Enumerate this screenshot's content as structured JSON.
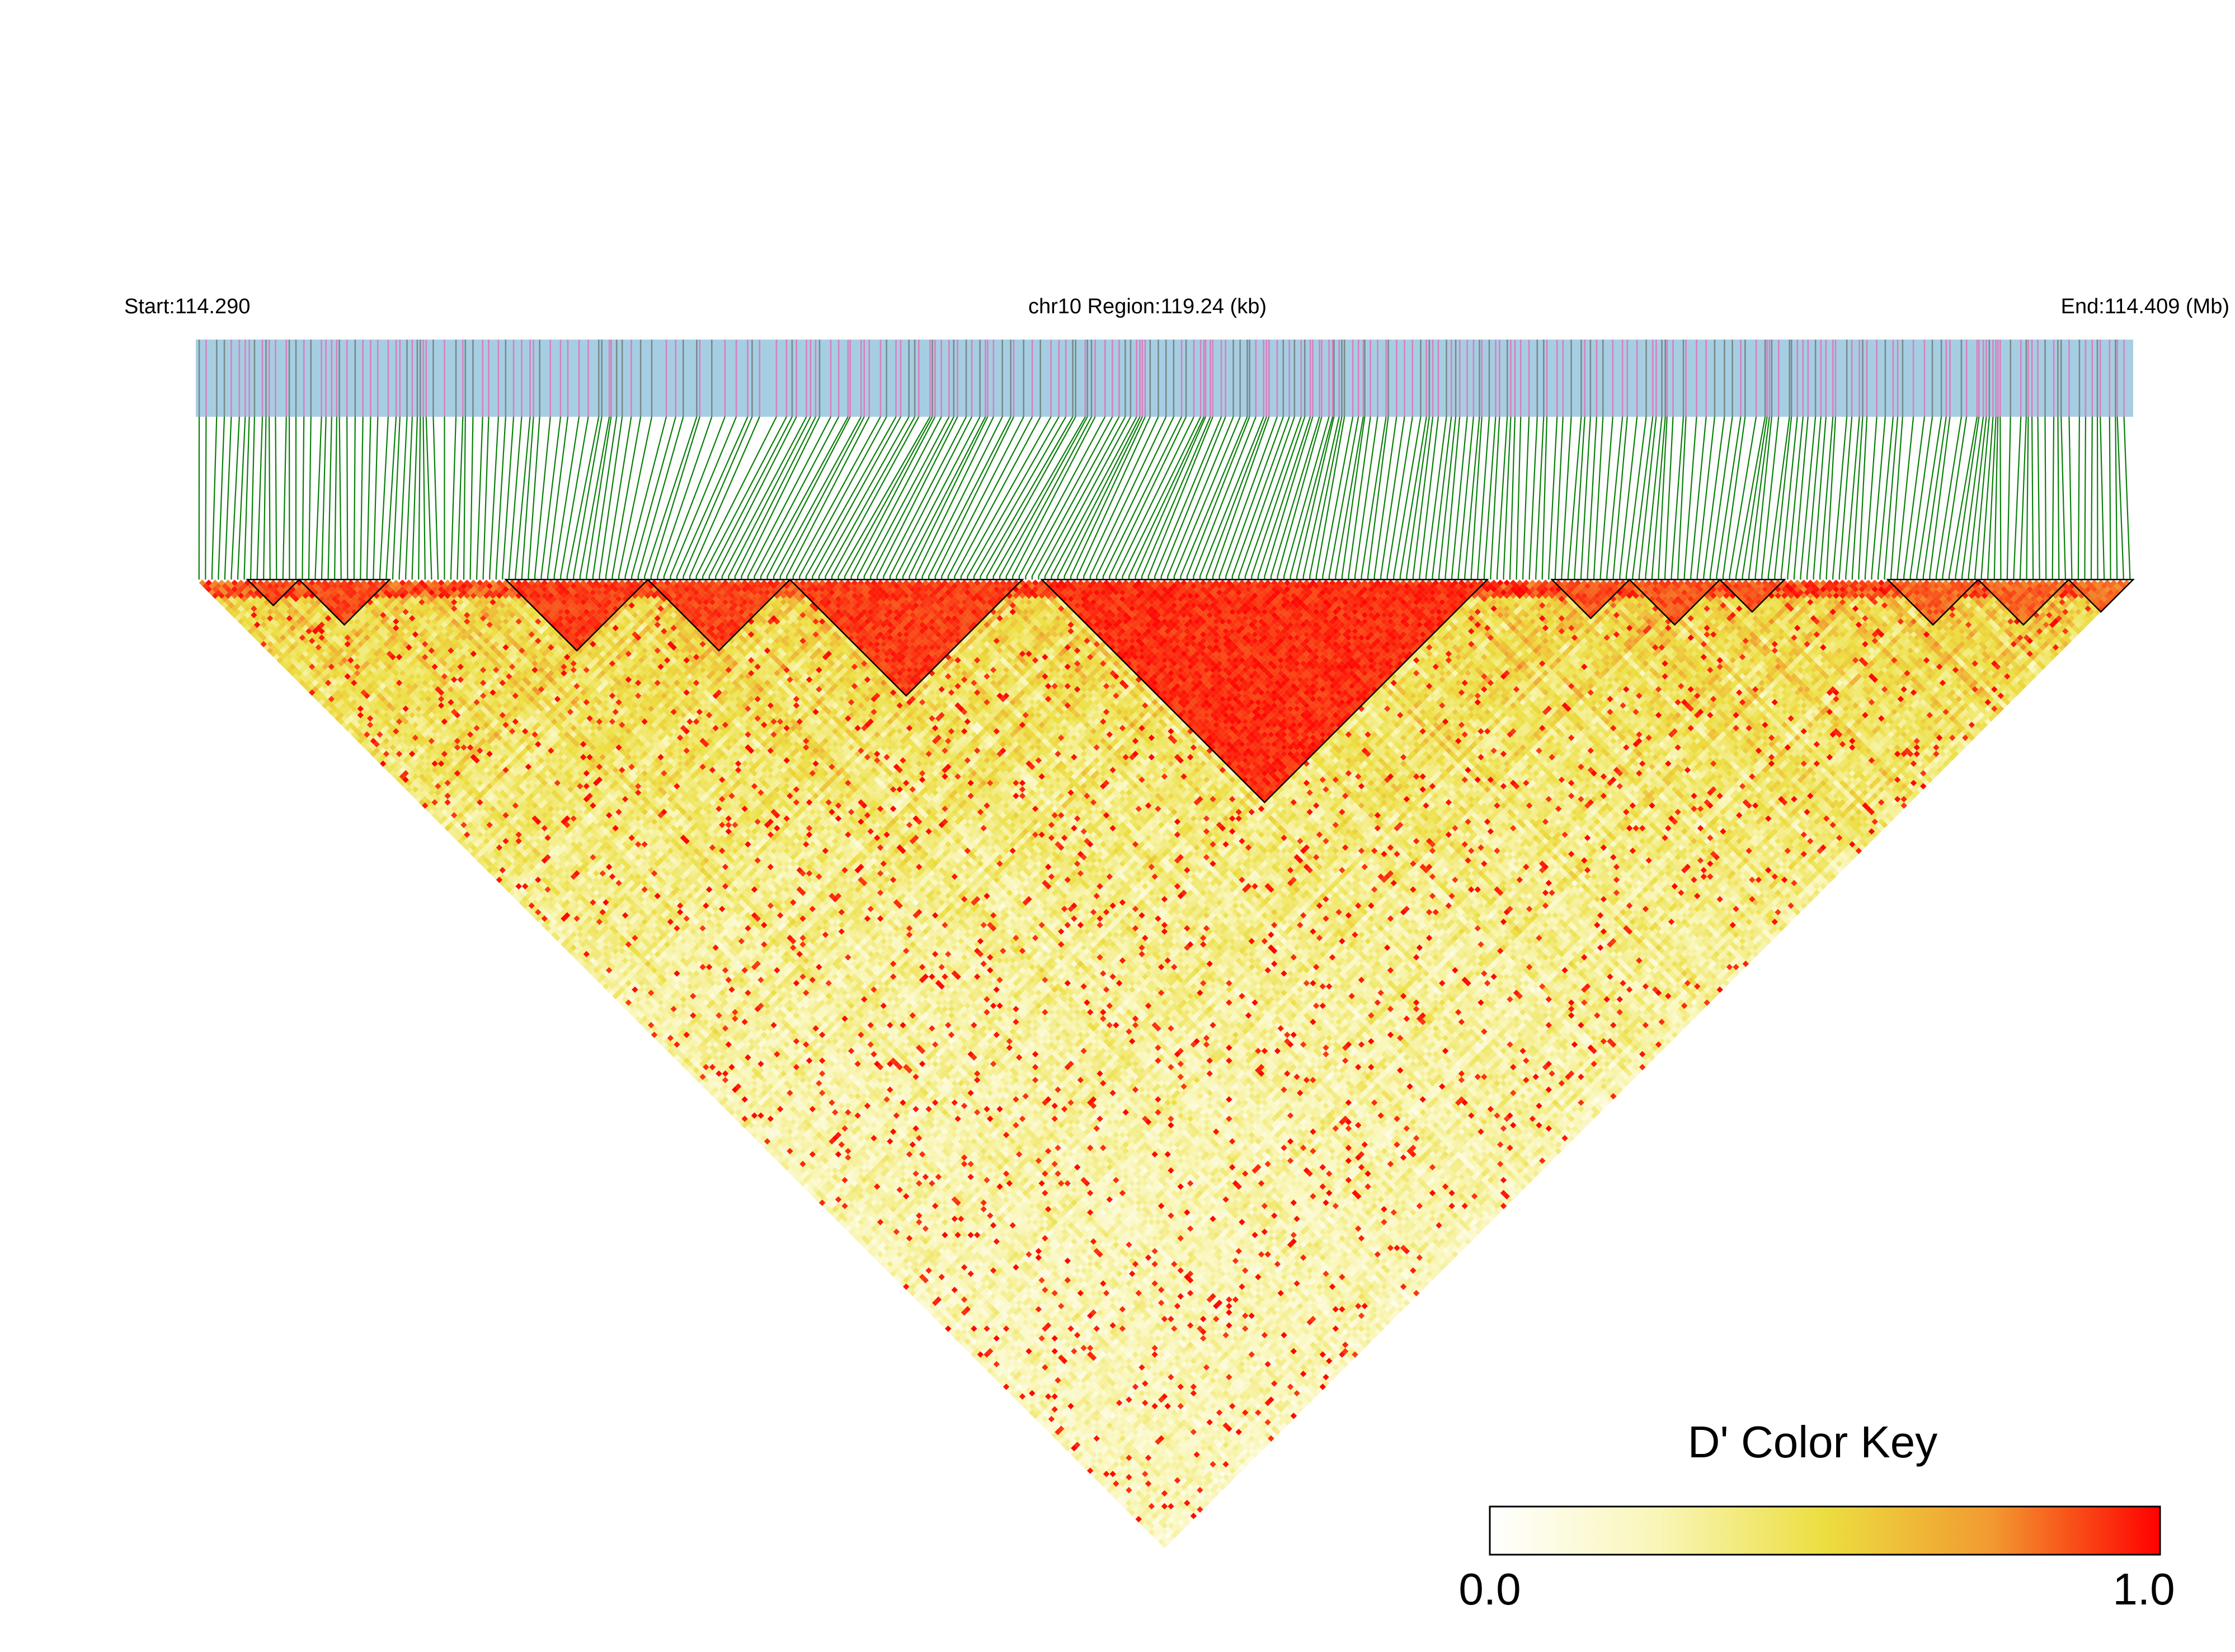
{
  "header": {
    "start_label": "Start:114.290",
    "region_label": "chr10 Region:119.24 (kb)",
    "end_label": "End:114.409 (Mb)"
  },
  "chart_data": {
    "type": "heatmap",
    "description_type": "triangular linkage-disequilibrium heatmap",
    "region": {
      "chromosome": "chr10",
      "start_mb": 114.29,
      "end_mb": 114.409,
      "length_kb": 119.24
    },
    "snp_count": 300,
    "measure": "D'",
    "color_key": {
      "title": "D' Color Key",
      "min": 0.0,
      "max": 1.0,
      "min_label": "0.0",
      "max_label": "1.0",
      "colors": [
        "#ffffff",
        "#f9f6b8",
        "#ecde40",
        "#f29930",
        "#ff0000"
      ]
    },
    "track_colors": {
      "background": "#a6cee3",
      "marker_a": "#d97fbf",
      "marker_b": "#7a8a8a",
      "connector": "#0a800a"
    },
    "ld_blocks": [
      {
        "from_snp": 8,
        "to_snp": 16,
        "mean_d_prime": 0.95
      },
      {
        "from_snp": 16,
        "to_snp": 30,
        "mean_d_prime": 0.95
      },
      {
        "from_snp": 48,
        "to_snp": 70,
        "mean_d_prime": 0.97
      },
      {
        "from_snp": 70,
        "to_snp": 92,
        "mean_d_prime": 0.96
      },
      {
        "from_snp": 92,
        "to_snp": 128,
        "mean_d_prime": 0.97
      },
      {
        "from_snp": 131,
        "to_snp": 200,
        "mean_d_prime": 0.99
      },
      {
        "from_snp": 210,
        "to_snp": 222,
        "mean_d_prime": 0.93
      },
      {
        "from_snp": 222,
        "to_snp": 236,
        "mean_d_prime": 0.93
      },
      {
        "from_snp": 236,
        "to_snp": 246,
        "mean_d_prime": 0.92
      },
      {
        "from_snp": 262,
        "to_snp": 276,
        "mean_d_prime": 0.9
      },
      {
        "from_snp": 276,
        "to_snp": 290,
        "mean_d_prime": 0.9
      },
      {
        "from_snp": 290,
        "to_snp": 300,
        "mean_d_prime": 0.88
      }
    ],
    "background_d_prime": {
      "typical_min": 0.0,
      "typical_max": 0.6
    }
  }
}
